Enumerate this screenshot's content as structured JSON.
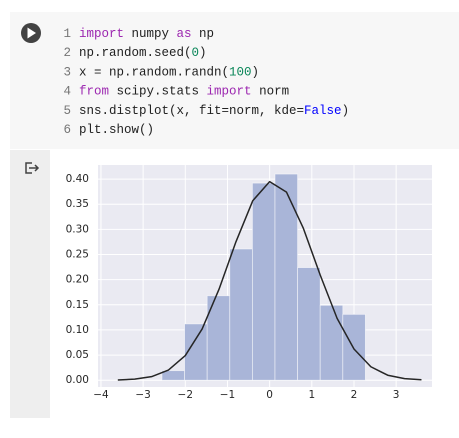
{
  "code": {
    "lines": [
      {
        "number": "1",
        "segments": [
          {
            "text": "import",
            "color": "#9c27b0"
          },
          {
            "text": " numpy ",
            "color": "#212121"
          },
          {
            "text": "as",
            "color": "#9c27b0"
          },
          {
            "text": " np",
            "color": "#212121"
          }
        ]
      },
      {
        "number": "2",
        "segments": [
          {
            "text": "np.random.seed(",
            "color": "#212121"
          },
          {
            "text": "0",
            "color": "#098658"
          },
          {
            "text": ")",
            "color": "#212121"
          }
        ]
      },
      {
        "number": "3",
        "segments": [
          {
            "text": "x = np.random.randn(",
            "color": "#212121"
          },
          {
            "text": "100",
            "color": "#098658"
          },
          {
            "text": ")",
            "color": "#212121"
          }
        ]
      },
      {
        "number": "4",
        "segments": [
          {
            "text": "from",
            "color": "#9c27b0"
          },
          {
            "text": " scipy.stats ",
            "color": "#212121"
          },
          {
            "text": "import",
            "color": "#9c27b0"
          },
          {
            "text": " norm",
            "color": "#212121"
          }
        ]
      },
      {
        "number": "5",
        "segments": [
          {
            "text": "sns.distplot(x, fit=norm, kde=",
            "color": "#212121"
          },
          {
            "text": "False",
            "color": "#0000ff"
          },
          {
            "text": ")",
            "color": "#212121"
          }
        ]
      },
      {
        "number": "6",
        "segments": [
          {
            "text": "plt.show()",
            "color": "#212121"
          }
        ]
      }
    ]
  },
  "chart_data": {
    "type": "histogram",
    "bins": [
      -2.553,
      -2.017,
      -1.481,
      -0.945,
      -0.409,
      0.127,
      0.663,
      1.199,
      1.735,
      2.27
    ],
    "values": [
      0.019,
      0.112,
      0.168,
      0.261,
      0.392,
      0.41,
      0.224,
      0.149,
      0.131
    ],
    "color": "#a9b5d8",
    "curve": {
      "type": "line",
      "color": "#262626",
      "x": [
        -3.6,
        -3.2,
        -2.8,
        -2.4,
        -2.0,
        -1.6,
        -1.2,
        -0.8,
        -0.4,
        0,
        0.4,
        0.8,
        1.2,
        1.6,
        2.0,
        2.4,
        2.8,
        3.2,
        3.6
      ],
      "values": [
        0.0005,
        0.0021,
        0.0071,
        0.0202,
        0.049,
        0.102,
        0.181,
        0.275,
        0.357,
        0.395,
        0.374,
        0.302,
        0.209,
        0.123,
        0.062,
        0.0268,
        0.0099,
        0.0031,
        0.0008
      ]
    },
    "xlim": [
      -4.07,
      3.85
    ],
    "ylim": [
      -0.0135,
      0.428
    ],
    "xticks": [
      {
        "value": -4,
        "label": "−4"
      },
      {
        "value": -3,
        "label": "−3"
      },
      {
        "value": -2,
        "label": "−2"
      },
      {
        "value": -1,
        "label": "−1"
      },
      0,
      1,
      2,
      3
    ],
    "yticks": [
      {
        "value": 0,
        "label": "0.00"
      },
      {
        "value": 0.05,
        "label": "0.05"
      },
      {
        "value": 0.1,
        "label": "0.10"
      },
      {
        "value": 0.15,
        "label": "0.15"
      },
      {
        "value": 0.2,
        "label": "0.20"
      },
      {
        "value": 0.25,
        "label": "0.25"
      },
      {
        "value": 0.3,
        "label": "0.30"
      },
      {
        "value": 0.35,
        "label": "0.35"
      },
      {
        "value": 0.4,
        "label": "0.40"
      }
    ],
    "grid": true,
    "background": "#eaeaf2"
  }
}
